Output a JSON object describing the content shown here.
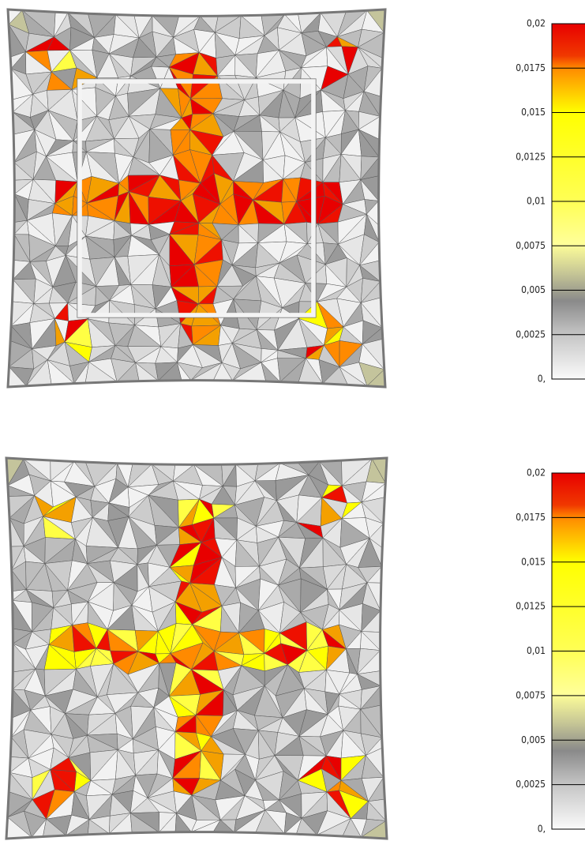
{
  "panels": [
    {
      "scale": {
        "labels": [
          "0,02",
          "0,0175",
          "0,015",
          "0,0125",
          "0,01",
          "0,0075",
          "0,005",
          "0,0025",
          "0,"
        ]
      }
    },
    {
      "scale": {
        "labels": [
          "0,02",
          "0,0175",
          "0,015",
          "0,0125",
          "0,01",
          "0,0075",
          "0,005",
          "0,0025",
          "0,"
        ]
      }
    }
  ]
}
